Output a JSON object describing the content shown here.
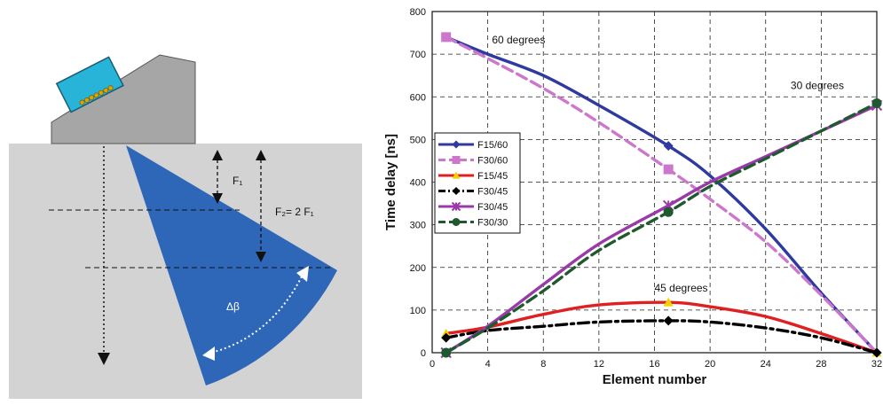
{
  "diagram": {
    "label_f1": "F₁",
    "label_f2": "F₂= 2 F₁",
    "label_dbeta": "Δβ"
  },
  "chart_data": {
    "type": "line",
    "xlabel": "Element number",
    "ylabel": "Time delay [ns]",
    "xlim": [
      0,
      32
    ],
    "ylim": [
      0,
      800
    ],
    "xticks": [
      0,
      4,
      8,
      12,
      16,
      20,
      24,
      28,
      32
    ],
    "yticks": [
      0,
      100,
      200,
      300,
      400,
      500,
      600,
      700,
      800
    ],
    "grid": true,
    "legend_position": "left-middle",
    "annotations": [
      {
        "text": "60 degrees",
        "x": 4.3,
        "y": 725
      },
      {
        "text": "30 degrees",
        "x": 25.8,
        "y": 618
      },
      {
        "text": "45 degrees",
        "x": 16,
        "y": 143
      }
    ],
    "series": [
      {
        "name": "F15/60",
        "color": "#2e3a9f",
        "dash": "solid",
        "marker": "diamond",
        "x": [
          1,
          4,
          8,
          12,
          17,
          20,
          24,
          28,
          32
        ],
        "y": [
          740,
          700,
          650,
          580,
          485,
          415,
          290,
          140,
          0
        ],
        "marker_x": [
          1,
          17,
          32
        ],
        "marker_y": [
          740,
          485,
          0
        ]
      },
      {
        "name": "F30/60",
        "color": "#cc77cc",
        "dash": "dashed",
        "marker": "square",
        "x": [
          1,
          4,
          8,
          12,
          17,
          20,
          24,
          28,
          32
        ],
        "y": [
          740,
          690,
          620,
          540,
          430,
          360,
          260,
          135,
          0
        ],
        "marker_x": [
          1,
          17
        ],
        "marker_y": [
          740,
          430
        ]
      },
      {
        "name": "F15/45",
        "color": "#e02020",
        "dash": "solid",
        "marker": "triangle",
        "x": [
          1,
          4,
          8,
          12,
          17,
          20,
          24,
          28,
          32
        ],
        "y": [
          45,
          60,
          90,
          112,
          118,
          108,
          85,
          45,
          0
        ],
        "marker_x": [
          1,
          17,
          32
        ],
        "marker_y": [
          45,
          118,
          0
        ]
      },
      {
        "name": "F30/45",
        "color": "#000000",
        "dash": "dashdot",
        "marker": "diamond",
        "x": [
          1,
          4,
          8,
          12,
          17,
          20,
          24,
          28,
          32
        ],
        "y": [
          35,
          52,
          62,
          72,
          75,
          72,
          58,
          35,
          0
        ],
        "marker_x": [
          1,
          17,
          32
        ],
        "marker_y": [
          35,
          75,
          0
        ]
      },
      {
        "name": "F30/45",
        "color": "#9a3aa8",
        "dash": "solid",
        "marker": "star",
        "x": [
          1,
          4,
          8,
          12,
          17,
          20,
          24,
          28,
          32
        ],
        "y": [
          0,
          62,
          160,
          255,
          345,
          400,
          460,
          520,
          580
        ],
        "marker_x": [
          1,
          17,
          32
        ],
        "marker_y": [
          0,
          345,
          580
        ]
      },
      {
        "name": "F30/30",
        "color": "#1e5a2e",
        "dash": "dashed",
        "marker": "circle",
        "x": [
          1,
          4,
          8,
          12,
          17,
          20,
          24,
          28,
          32
        ],
        "y": [
          0,
          58,
          145,
          240,
          330,
          390,
          455,
          520,
          585
        ],
        "marker_x": [
          1,
          17,
          32
        ],
        "marker_y": [
          0,
          330,
          585
        ]
      }
    ]
  }
}
